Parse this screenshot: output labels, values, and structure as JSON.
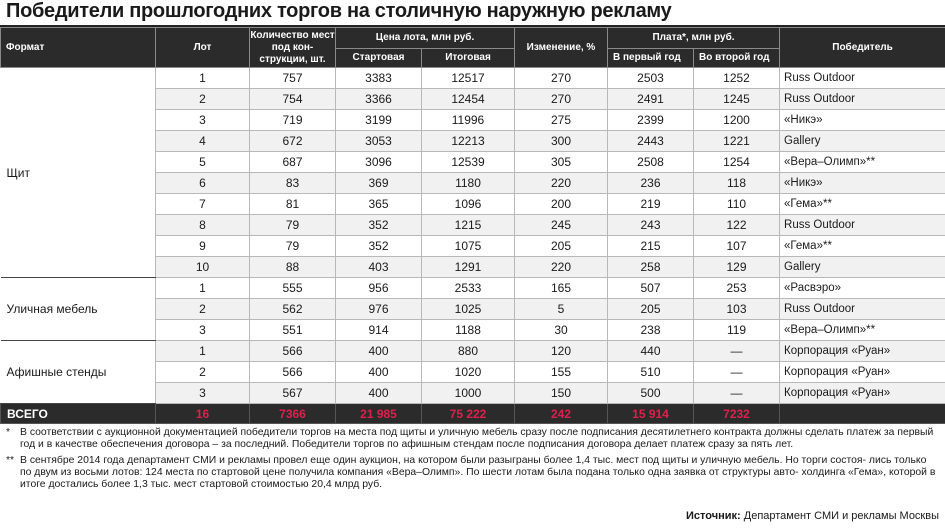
{
  "title": "Победители прошлогодних торгов на столичную наружную рекламу",
  "headers": {
    "format": "Формат",
    "lot": "Лот",
    "qty": "Количество мест под кон- струкции, шт.",
    "price_group": "Цена лота, млн руб.",
    "price_start": "Стартовая",
    "price_final": "Итоговая",
    "change": "Изменение, %",
    "pay_group": "Плата*, млн руб.",
    "pay_first": "В первый год",
    "pay_second": "Во второй год",
    "winner": "Победитель"
  },
  "groups": [
    {
      "format": "Щит",
      "rows": [
        {
          "lot": "1",
          "qty": "757",
          "start": "3383",
          "final": "12517",
          "change": "270",
          "pay1": "2503",
          "pay2": "1252",
          "winner": "Russ Outdoor"
        },
        {
          "lot": "2",
          "qty": "754",
          "start": "3366",
          "final": "12454",
          "change": "270",
          "pay1": "2491",
          "pay2": "1245",
          "winner": "Russ Outdoor"
        },
        {
          "lot": "3",
          "qty": "719",
          "start": "3199",
          "final": "11996",
          "change": "275",
          "pay1": "2399",
          "pay2": "1200",
          "winner": "«Никэ»"
        },
        {
          "lot": "4",
          "qty": "672",
          "start": "3053",
          "final": "12213",
          "change": "300",
          "pay1": "2443",
          "pay2": "1221",
          "winner": "Gallery"
        },
        {
          "lot": "5",
          "qty": "687",
          "start": "3096",
          "final": "12539",
          "change": "305",
          "pay1": "2508",
          "pay2": "1254",
          "winner": "«Вера–Олимп»**"
        },
        {
          "lot": "6",
          "qty": "83",
          "start": "369",
          "final": "1180",
          "change": "220",
          "pay1": "236",
          "pay2": "118",
          "winner": "«Никэ»"
        },
        {
          "lot": "7",
          "qty": "81",
          "start": "365",
          "final": "1096",
          "change": "200",
          "pay1": "219",
          "pay2": "110",
          "winner": "«Гема»**"
        },
        {
          "lot": "8",
          "qty": "79",
          "start": "352",
          "final": "1215",
          "change": "245",
          "pay1": "243",
          "pay2": "122",
          "winner": "Russ Outdoor"
        },
        {
          "lot": "9",
          "qty": "79",
          "start": "352",
          "final": "1075",
          "change": "205",
          "pay1": "215",
          "pay2": "107",
          "winner": "«Гема»**"
        },
        {
          "lot": "10",
          "qty": "88",
          "start": "403",
          "final": "1291",
          "change": "220",
          "pay1": "258",
          "pay2": "129",
          "winner": "Gallery"
        }
      ]
    },
    {
      "format": "Уличная мебель",
      "rows": [
        {
          "lot": "1",
          "qty": "555",
          "start": "956",
          "final": "2533",
          "change": "165",
          "pay1": "507",
          "pay2": "253",
          "winner": "«Расвэро»"
        },
        {
          "lot": "2",
          "qty": "562",
          "start": "976",
          "final": "1025",
          "change": "5",
          "pay1": "205",
          "pay2": "103",
          "winner": "Russ Outdoor"
        },
        {
          "lot": "3",
          "qty": "551",
          "start": "914",
          "final": "1188",
          "change": "30",
          "pay1": "238",
          "pay2": "119",
          "winner": "«Вера–Олимп»**"
        }
      ]
    },
    {
      "format": "Афишные стенды",
      "rows": [
        {
          "lot": "1",
          "qty": "566",
          "start": "400",
          "final": "880",
          "change": "120",
          "pay1": "440",
          "pay2": "—",
          "winner": "Корпорация «Руан»"
        },
        {
          "lot": "2",
          "qty": "566",
          "start": "400",
          "final": "1020",
          "change": "155",
          "pay1": "510",
          "pay2": "—",
          "winner": "Корпорация «Руан»"
        },
        {
          "lot": "3",
          "qty": "567",
          "start": "400",
          "final": "1000",
          "change": "150",
          "pay1": "500",
          "pay2": "—",
          "winner": "Корпорация «Руан»"
        }
      ]
    }
  ],
  "total": {
    "label": "ВСЕГО",
    "lot": "16",
    "qty": "7366",
    "start": "21 985",
    "final": "75 222",
    "change": "242",
    "pay1": "15 914",
    "pay2": "7232",
    "winner": ""
  },
  "notes": [
    {
      "mark": "*",
      "text": "В соответствии с аукционной документацией победители торгов на места под щиты и уличную мебель сразу после подписания десятилетнего контракта должны сделать платеж за первый год и в качестве обеспечения договора – за последний. Победители торгов по афишным стендам после подписания договора делает платеж сразу за пять лет."
    },
    {
      "mark": "**",
      "text": "В сентябре 2014 года департамент СМИ и рекламы провел еще один аукцион, на котором были разыграны более 1,4 тыс. мест под щиты и уличную мебель. Но торги состоя- лись только по двум из восьми лотов: 124 места по стартовой цене получила компания «Вера–Олимп». По шести лотам была подана только одна заявка от структуры авто- холдинга «Гема», которой в итоге достались более 1,3 тыс. мест стартовой стоимостью 20,4 млрд руб."
    }
  ],
  "source": {
    "label": "Источник:",
    "text": "Департамент СМИ и рекламы Москвы"
  },
  "colors": {
    "header_bg": "#2b2b2b",
    "total_value": "#e0204b",
    "band_alt": "#f1f1f1"
  }
}
